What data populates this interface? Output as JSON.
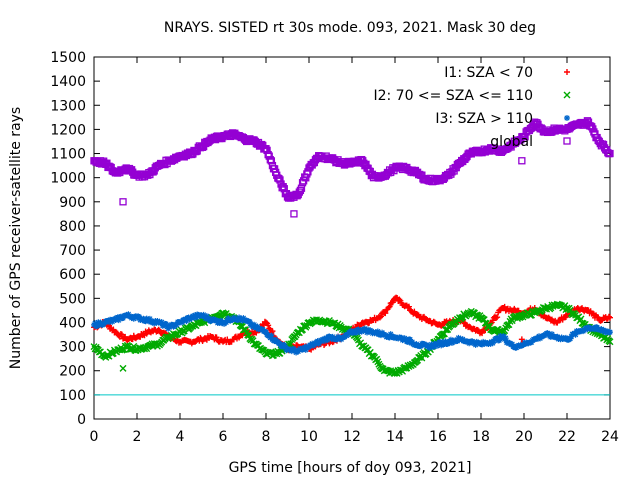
{
  "chart_data": {
    "type": "scatter",
    "title": "NRAYS. SISTED rt 30s mode. 093, 2021. Mask 30 deg",
    "xlabel": "GPS time [hours of doy 093, 2021]",
    "ylabel": "Number of GPS receiver-satellite rays",
    "xlim": [
      0,
      24
    ],
    "ylim": [
      0,
      1500
    ],
    "xticks": [
      "0",
      "2",
      "4",
      "6",
      "8",
      "10",
      "12",
      "14",
      "16",
      "18",
      "20",
      "22",
      "24"
    ],
    "yticks": [
      "0",
      "100",
      "200",
      "300",
      "400",
      "500",
      "600",
      "700",
      "800",
      "900",
      "1000",
      "1100",
      "1200",
      "1300",
      "1400",
      "1500"
    ],
    "legend_position": "top-right",
    "series": [
      {
        "name": "I1: SZA < 70",
        "marker": "+",
        "marker_symbol": "+",
        "color": "#ff0000",
        "x": [
          0,
          0.5,
          1,
          1.5,
          2,
          2.5,
          3,
          3.5,
          4,
          4.5,
          5,
          5.5,
          6,
          6.5,
          7,
          7.5,
          8,
          8.5,
          9,
          9.5,
          10,
          10.5,
          11,
          11.5,
          12,
          12.5,
          13,
          13.5,
          14,
          14.5,
          15,
          15.5,
          16,
          16.5,
          17,
          17.5,
          18,
          18.5,
          19,
          19.5,
          20,
          20.5,
          21,
          21.5,
          22,
          22.5,
          23,
          23.5,
          24
        ],
        "y": [
          380,
          400,
          360,
          330,
          340,
          360,
          370,
          340,
          320,
          320,
          330,
          340,
          320,
          330,
          360,
          360,
          400,
          330,
          290,
          300,
          290,
          310,
          320,
          340,
          370,
          400,
          410,
          440,
          500,
          470,
          430,
          410,
          390,
          400,
          410,
          380,
          360,
          400,
          460,
          450,
          440,
          460,
          420,
          400,
          430,
          460,
          450,
          410,
          420
        ]
      },
      {
        "name": "I2: 70 <= SZA <= 110",
        "marker": "x",
        "marker_symbol": "×",
        "color": "#00aa00",
        "x": [
          0,
          0.5,
          1,
          1.5,
          2,
          2.5,
          3,
          3.5,
          4,
          4.5,
          5,
          5.5,
          6,
          6.5,
          7,
          7.5,
          8,
          8.5,
          9,
          9.5,
          10,
          10.5,
          11,
          11.5,
          12,
          12.5,
          13,
          13.5,
          14,
          14.5,
          15,
          15.5,
          16,
          16.5,
          17,
          17.5,
          18,
          18.5,
          19,
          19.5,
          20,
          20.5,
          21,
          21.5,
          22,
          22.5,
          23,
          23.5,
          24
        ],
        "y": [
          300,
          260,
          280,
          300,
          290,
          300,
          310,
          340,
          360,
          380,
          400,
          420,
          440,
          420,
          370,
          310,
          270,
          270,
          300,
          360,
          400,
          410,
          400,
          380,
          360,
          300,
          260,
          200,
          190,
          210,
          240,
          280,
          330,
          380,
          420,
          440,
          420,
          370,
          360,
          420,
          430,
          440,
          460,
          470,
          460,
          420,
          380,
          350,
          320
        ]
      },
      {
        "name": "I3: SZA > 110",
        "marker": "*",
        "marker_symbol": "✱",
        "color": "#0066cc",
        "x": [
          0,
          0.5,
          1,
          1.5,
          2,
          2.5,
          3,
          3.5,
          4,
          4.5,
          5,
          5.5,
          6,
          6.5,
          7,
          7.5,
          8,
          8.5,
          9,
          9.5,
          10,
          10.5,
          11,
          11.5,
          12,
          12.5,
          13,
          13.5,
          14,
          14.5,
          15,
          15.5,
          16,
          16.5,
          17,
          17.5,
          18,
          18.5,
          19,
          19.5,
          20,
          20.5,
          21,
          21.5,
          22,
          22.5,
          23,
          23.5,
          24
        ],
        "y": [
          390,
          400,
          410,
          430,
          420,
          410,
          400,
          380,
          400,
          420,
          430,
          410,
          400,
          420,
          410,
          380,
          360,
          320,
          290,
          280,
          300,
          320,
          340,
          330,
          360,
          370,
          360,
          350,
          340,
          330,
          310,
          300,
          310,
          320,
          330,
          320,
          310,
          320,
          340,
          300,
          310,
          330,
          350,
          340,
          330,
          360,
          380,
          370,
          360
        ]
      },
      {
        "name": "global",
        "marker": "square",
        "marker_symbol": "□",
        "color": "#9400d3",
        "x": [
          0,
          0.5,
          1,
          1.5,
          2,
          2.5,
          3,
          3.5,
          4,
          4.5,
          5,
          5.5,
          6,
          6.5,
          7,
          7.5,
          8,
          8.5,
          9,
          9.5,
          10,
          10.5,
          11,
          11.5,
          12,
          12.5,
          13,
          13.5,
          14,
          14.5,
          15,
          15.5,
          16,
          16.5,
          17,
          17.5,
          18,
          18.5,
          19,
          19.5,
          20,
          20.5,
          21,
          21.5,
          22,
          22.5,
          23,
          23.5,
          24
        ],
        "y": [
          1070,
          1060,
          1020,
          1040,
          1010,
          1010,
          1050,
          1070,
          1090,
          1100,
          1130,
          1160,
          1170,
          1180,
          1160,
          1150,
          1120,
          1010,
          920,
          930,
          1040,
          1090,
          1080,
          1060,
          1060,
          1070,
          1000,
          1010,
          1040,
          1040,
          1020,
          990,
          990,
          1010,
          1060,
          1100,
          1110,
          1120,
          1110,
          1140,
          1170,
          1230,
          1190,
          1200,
          1200,
          1220,
          1230,
          1150,
          1100
        ]
      }
    ],
    "outliers": [
      {
        "series": "global",
        "x": 1.35,
        "y": 900
      },
      {
        "series": "global",
        "x": 9.3,
        "y": 850
      },
      {
        "series": "global",
        "x": 19.9,
        "y": 1070
      },
      {
        "series": "I2: 70 <= SZA <= 110",
        "x": 1.35,
        "y": 210
      },
      {
        "series": "I1: SZA < 70",
        "x": 19.9,
        "y": 330
      }
    ],
    "reference_line": {
      "y": 100,
      "color": "#00c8c8"
    }
  }
}
